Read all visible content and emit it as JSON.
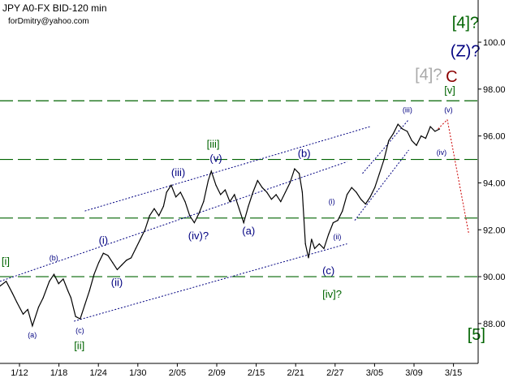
{
  "header": {
    "instrument": "JPY A0-FX BID-120 min",
    "author": "forDmitry@yahoo.com"
  },
  "colors": {
    "price": "#000000",
    "channel": "#000080",
    "level": "#006400",
    "forecast": "#cc0000",
    "wave_blue": "#000080",
    "wave_green": "#006400",
    "wave_grey": "#a9a9a9",
    "wave_red": "#8b0000"
  },
  "chart_data": {
    "type": "line",
    "x_ticks": [
      "1/12",
      "1/18",
      "1/24",
      "1/30",
      "2/05",
      "2/09",
      "2/15",
      "2/21",
      "2/27",
      "3/05",
      "3/09",
      "3/15"
    ],
    "y_ticks": [
      "88.00",
      "90.00",
      "92.00",
      "94.00",
      "96.00",
      "98.00",
      "100.0"
    ],
    "ylim": [
      86.3,
      101.8
    ],
    "xlim": [
      0,
      62
    ],
    "series": [
      {
        "values": [
          [
            0,
            89.6
          ],
          [
            0.8,
            89.8
          ],
          [
            1.6,
            89.3
          ],
          [
            2.2,
            88.9
          ],
          [
            3,
            88.4
          ],
          [
            3.6,
            88.6
          ],
          [
            4.2,
            87.9
          ],
          [
            5,
            88.7
          ],
          [
            5.6,
            89.1
          ],
          [
            6.4,
            89.8
          ],
          [
            7,
            90.1
          ],
          [
            7.6,
            89.7
          ],
          [
            8.2,
            89.9
          ],
          [
            8.8,
            89.4
          ],
          [
            9.2,
            89.1
          ],
          [
            9.8,
            88.3
          ],
          [
            10.4,
            88.2
          ],
          [
            11,
            88.8
          ],
          [
            11.6,
            89.4
          ],
          [
            12.2,
            90.1
          ],
          [
            12.8,
            90.6
          ],
          [
            13.4,
            91.0
          ],
          [
            14,
            90.9
          ],
          [
            14.6,
            90.6
          ],
          [
            15.2,
            90.3
          ],
          [
            15.8,
            90.5
          ],
          [
            16.4,
            90.7
          ],
          [
            17,
            90.8
          ],
          [
            17.6,
            91.2
          ],
          [
            18.2,
            91.6
          ],
          [
            18.8,
            92.0
          ],
          [
            19.4,
            92.6
          ],
          [
            20,
            92.9
          ],
          [
            20.6,
            92.6
          ],
          [
            21.2,
            93.0
          ],
          [
            21.6,
            93.6
          ],
          [
            22.2,
            93.9
          ],
          [
            22.8,
            93.4
          ],
          [
            23.4,
            93.6
          ],
          [
            24,
            93.2
          ],
          [
            24.6,
            92.6
          ],
          [
            25.2,
            92.3
          ],
          [
            25.8,
            92.7
          ],
          [
            26.4,
            93.2
          ],
          [
            27,
            94.1
          ],
          [
            27.4,
            94.5
          ],
          [
            28,
            93.9
          ],
          [
            28.6,
            93.5
          ],
          [
            29.2,
            93.7
          ],
          [
            29.8,
            93.2
          ],
          [
            30.4,
            93.5
          ],
          [
            31,
            92.9
          ],
          [
            31.6,
            92.3
          ],
          [
            32.2,
            93.0
          ],
          [
            32.8,
            93.6
          ],
          [
            33.4,
            94.1
          ],
          [
            34,
            93.8
          ],
          [
            34.6,
            93.6
          ],
          [
            35.2,
            93.3
          ],
          [
            35.8,
            93.5
          ],
          [
            36.4,
            93.2
          ],
          [
            37,
            93.6
          ],
          [
            37.6,
            94.0
          ],
          [
            38.2,
            94.6
          ],
          [
            38.8,
            94.4
          ],
          [
            39.2,
            93.6
          ],
          [
            39.6,
            91.4
          ],
          [
            40,
            90.8
          ],
          [
            40.4,
            91.6
          ],
          [
            40.8,
            91.2
          ],
          [
            41.4,
            91.4
          ],
          [
            42,
            91.2
          ],
          [
            42.6,
            91.8
          ],
          [
            43.2,
            92.3
          ],
          [
            43.8,
            92.4
          ],
          [
            44.4,
            92.8
          ],
          [
            45,
            93.5
          ],
          [
            45.6,
            93.8
          ],
          [
            46.2,
            93.6
          ],
          [
            46.8,
            93.3
          ],
          [
            47.4,
            93.1
          ],
          [
            48,
            93.4
          ],
          [
            48.6,
            93.8
          ],
          [
            49.2,
            94.4
          ],
          [
            49.8,
            95.0
          ],
          [
            50.4,
            95.8
          ],
          [
            51,
            96.1
          ],
          [
            51.6,
            96.5
          ],
          [
            52.2,
            96.3
          ],
          [
            52.8,
            96.2
          ],
          [
            53.4,
            95.8
          ],
          [
            54,
            95.6
          ],
          [
            54.6,
            96.0
          ],
          [
            55.2,
            95.9
          ],
          [
            55.8,
            96.4
          ],
          [
            56.4,
            96.2
          ],
          [
            57,
            96.3
          ]
        ]
      }
    ],
    "lines": {
      "channel": [
        {
          "from": [
            11,
            92.8
          ],
          "to": [
            48,
            96.4
          ]
        },
        {
          "from": [
            0,
            89.8
          ],
          "to": [
            45,
            94.9
          ]
        },
        {
          "from": [
            9.6,
            88.1
          ],
          "to": [
            45,
            91.4
          ]
        },
        {
          "from": [
            46,
            92.4
          ],
          "to": [
            53,
            95.4
          ]
        },
        {
          "from": [
            47,
            94.4
          ],
          "to": [
            53,
            96.7
          ]
        }
      ],
      "levels": [
        97.5,
        95.0,
        92.5,
        90.0
      ],
      "forecast": [
        {
          "from": [
            56.8,
            96.3
          ],
          "to": [
            58,
            96.7
          ]
        },
        {
          "from": [
            58,
            96.7
          ],
          "to": [
            60.8,
            91.8
          ]
        }
      ]
    },
    "wave_labels": [
      {
        "text": "[i]",
        "x": 0.2,
        "y": 90.5,
        "color": "green",
        "size": "medium"
      },
      {
        "text": "(a)",
        "x": 3.6,
        "y": 87.4,
        "color": "blue",
        "size": "small"
      },
      {
        "text": "(b)",
        "x": 6.4,
        "y": 90.7,
        "color": "blue",
        "size": "small"
      },
      {
        "text": "(c)",
        "x": 9.8,
        "y": 87.6,
        "color": "blue",
        "size": "small"
      },
      {
        "text": "[ii]",
        "x": 9.6,
        "y": 86.9,
        "color": "green",
        "size": "medium"
      },
      {
        "text": "(i)",
        "x": 12.8,
        "y": 91.4,
        "color": "blue",
        "size": "medium"
      },
      {
        "text": "(ii)",
        "x": 14.4,
        "y": 89.6,
        "color": "blue",
        "size": "medium"
      },
      {
        "text": "(iii)",
        "x": 22.2,
        "y": 94.3,
        "color": "blue",
        "size": "medium"
      },
      {
        "text": "(iv)?",
        "x": 24.4,
        "y": 91.6,
        "color": "blue",
        "size": "medium"
      },
      {
        "text": "(v)",
        "x": 27.2,
        "y": 94.9,
        "color": "blue",
        "size": "medium"
      },
      {
        "text": "[iii]",
        "x": 26.8,
        "y": 95.5,
        "color": "green",
        "size": "medium"
      },
      {
        "text": "(a)",
        "x": 31.4,
        "y": 91.8,
        "color": "blue",
        "size": "medium"
      },
      {
        "text": "(b)",
        "x": 38.6,
        "y": 95.1,
        "color": "blue",
        "size": "medium"
      },
      {
        "text": "(c)",
        "x": 41.8,
        "y": 90.1,
        "color": "blue",
        "size": "medium"
      },
      {
        "text": "[iv]?",
        "x": 41.8,
        "y": 89.1,
        "color": "green",
        "size": "medium"
      },
      {
        "text": "(i)",
        "x": 42.6,
        "y": 93.1,
        "color": "blue",
        "size": "small"
      },
      {
        "text": "(ii)",
        "x": 43.2,
        "y": 91.6,
        "color": "blue",
        "size": "small"
      },
      {
        "text": "(iii)",
        "x": 52.2,
        "y": 97.0,
        "color": "blue",
        "size": "small"
      },
      {
        "text": "(iv)",
        "x": 56.6,
        "y": 95.2,
        "color": "blue",
        "size": "small"
      },
      {
        "text": "(v)",
        "x": 57.6,
        "y": 97.0,
        "color": "blue",
        "size": "small"
      },
      {
        "text": "[v]",
        "x": 57.6,
        "y": 97.8,
        "color": "green",
        "size": "medium"
      },
      {
        "text": "[4]?",
        "x": 53.8,
        "y": 98.4,
        "color": "grey",
        "size": "large"
      },
      {
        "text": "C",
        "x": 57.8,
        "y": 98.3,
        "color": "red",
        "size": "large"
      },
      {
        "text": "(Z)?",
        "x": 58.4,
        "y": 99.4,
        "color": "blue",
        "size": "large"
      },
      {
        "text": "[4]?",
        "x": 58.6,
        "y": 100.6,
        "color": "green",
        "size": "large"
      },
      {
        "text": "[5]",
        "x": 60.6,
        "y": 87.3,
        "color": "green",
        "size": "large"
      }
    ],
    "grid": false,
    "legend": "none"
  }
}
